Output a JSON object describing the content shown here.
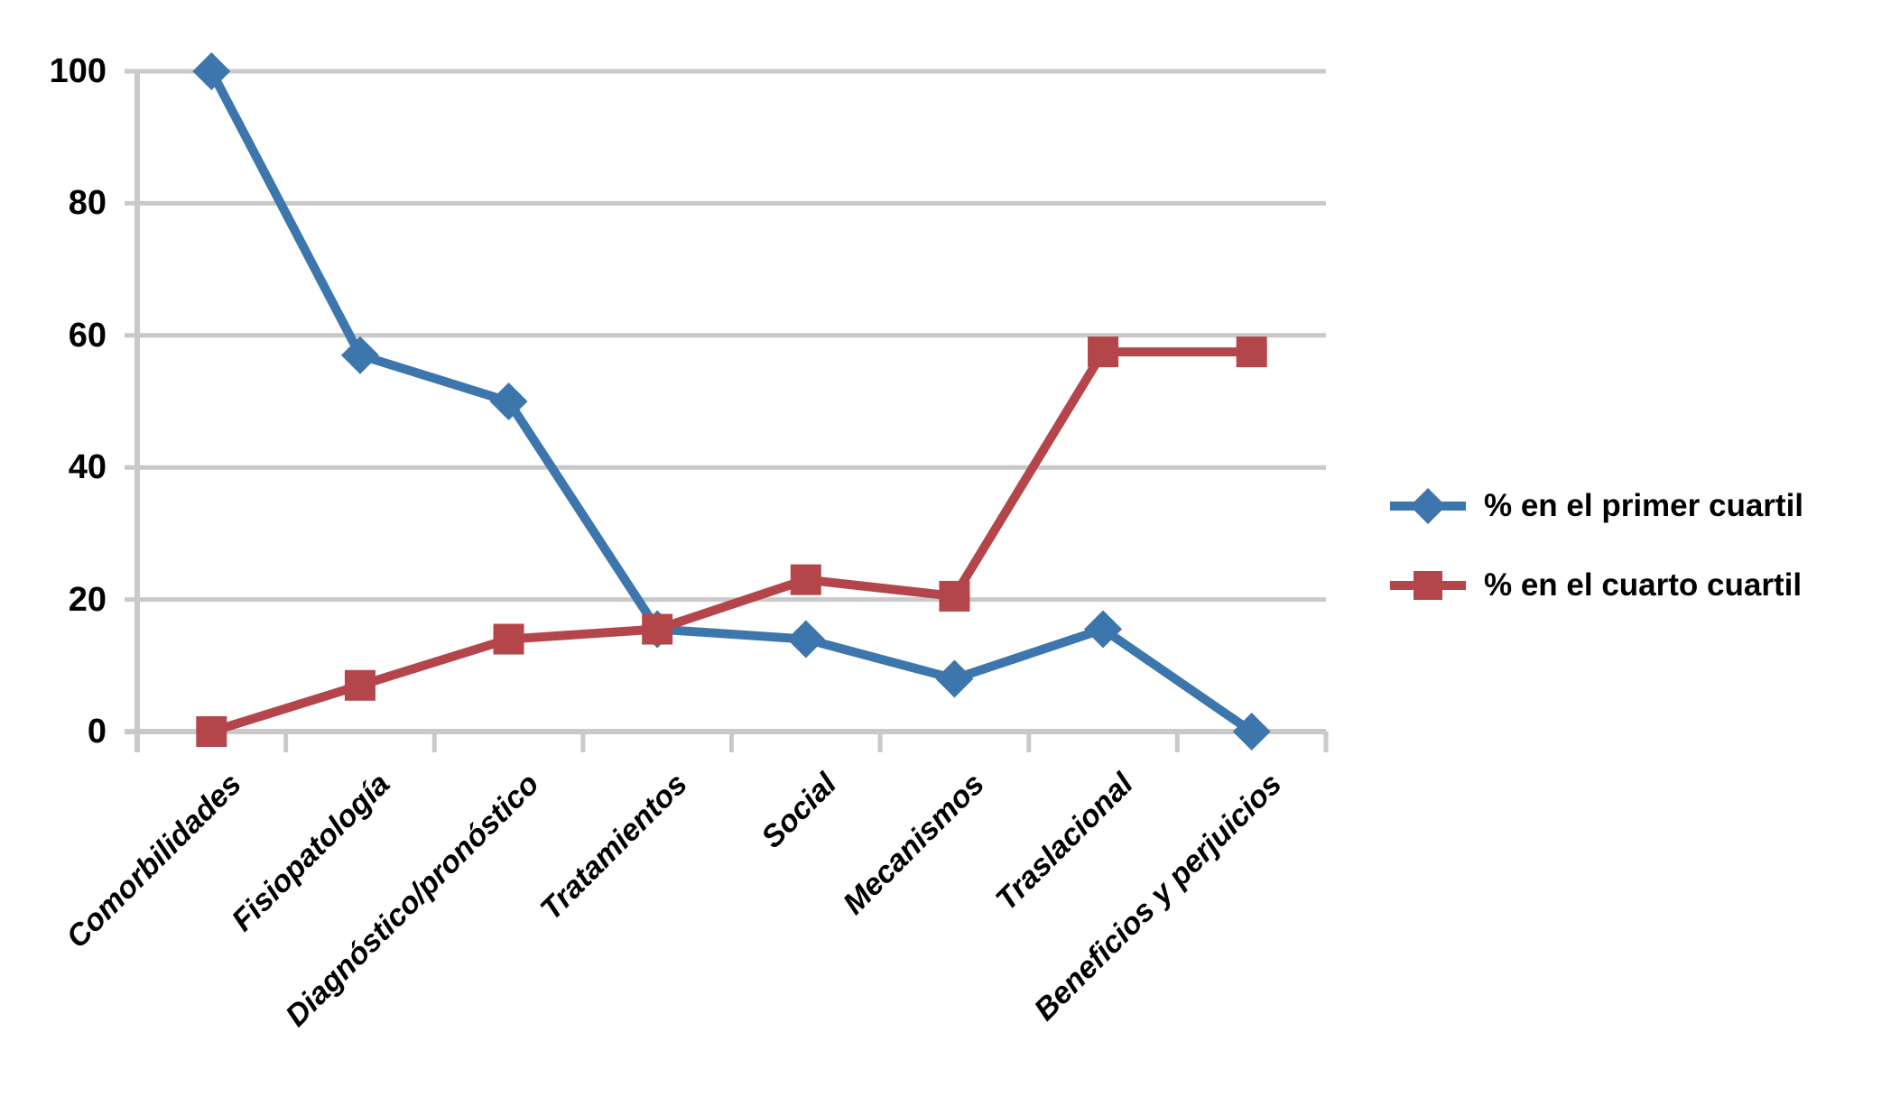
{
  "chart_data": {
    "type": "line",
    "categories": [
      "Comorbilidades",
      "Fisiopatología",
      "Diagnóstico/pronóstico",
      "Tratamientos",
      "Social",
      "Mecanismos",
      "Traslacional",
      "Beneficios y perjuicios"
    ],
    "series": [
      {
        "name": "% en el primer cuartil",
        "marker": "diamond",
        "color": "#3D76AD",
        "values": [
          100,
          57,
          50,
          15.5,
          14,
          8,
          15.5,
          0
        ]
      },
      {
        "name": "% en el cuarto cuartil",
        "marker": "square",
        "color": "#B4464B",
        "values": [
          0,
          7,
          14,
          15.5,
          23,
          20.5,
          57.5,
          57.5
        ]
      }
    ],
    "title": "",
    "xlabel": "",
    "ylabel": "",
    "ylim": [
      0,
      100
    ],
    "yticks": [
      0,
      20,
      40,
      60,
      80,
      100
    ],
    "grid": "horizontal",
    "x_tick_label_angle_deg": 45,
    "legend_position": "right",
    "gridline_color": "#C9C9C9",
    "axis_color": "#C9C9C9",
    "text_color": "#000000",
    "background": "#FFFFFF"
  }
}
